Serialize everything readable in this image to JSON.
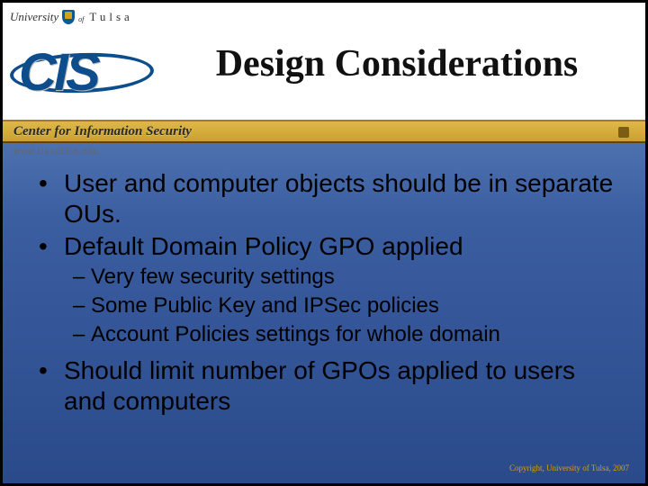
{
  "header": {
    "university_prefix": "University",
    "university_of": "of",
    "university_name": "Tulsa",
    "cis_logo_text": "CIS",
    "gold_bar_text": "Center for Information Security",
    "url": "www.cis.utulsa.edu"
  },
  "title": "Design Considerations",
  "bullets": [
    {
      "level": 1,
      "text": "User and computer objects should be in separate OUs."
    },
    {
      "level": 1,
      "text": "Default Domain Policy GPO applied"
    },
    {
      "level": 2,
      "text": "Very few security settings"
    },
    {
      "level": 2,
      "text": "Some Public Key and IPSec policies"
    },
    {
      "level": 2,
      "text": "Account Policies settings for whole domain"
    },
    {
      "level": 1,
      "text": "Should limit number of GPOs applied to users and computers"
    }
  ],
  "footer": {
    "copyright": "Copyright, University of Tulsa, 2007"
  },
  "style": {
    "slide_width": 720,
    "slide_height": 540,
    "title_color": "#111111",
    "title_fontsize": 42,
    "bullet_L1_fontsize": 28,
    "bullet_L2_fontsize": 24,
    "body_text_color": "#000000",
    "background_gradient_top": "#6b8fc4",
    "background_gradient_bottom": "#2a4a8a",
    "gold_bar_color_top": "#e0b84a",
    "gold_bar_color_bottom": "#caa12f",
    "cis_logo_color": "#0d4d8c",
    "copyright_color": "#d4a017",
    "copyright_fontsize": 9
  }
}
